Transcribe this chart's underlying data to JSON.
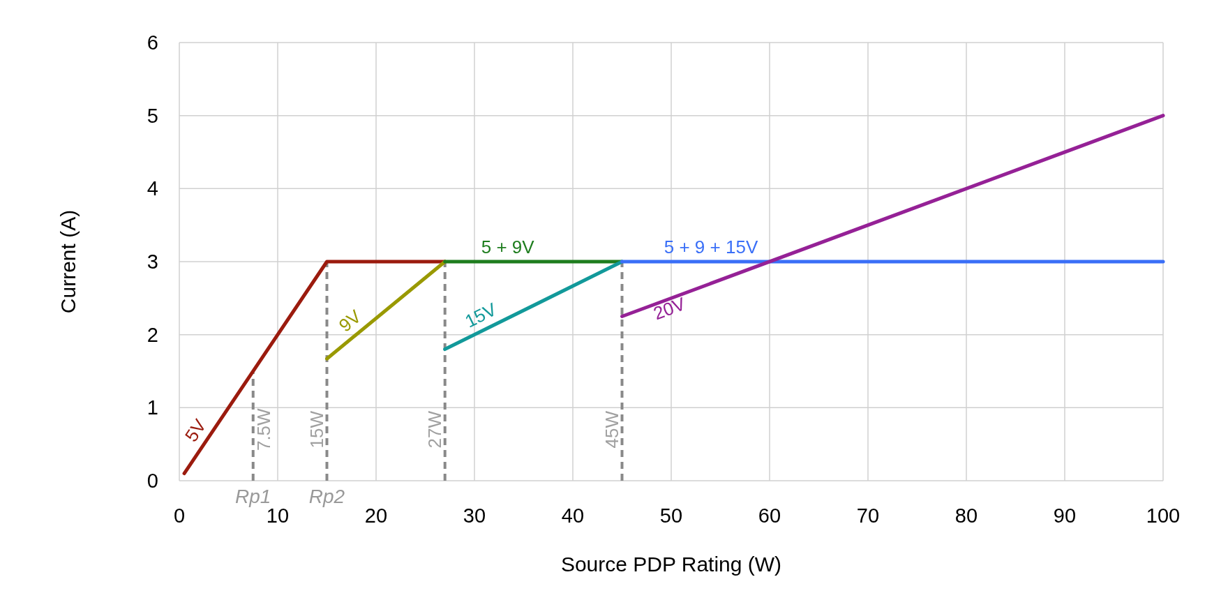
{
  "chart_data": {
    "type": "line",
    "xlabel": "Source PDP Rating (W)",
    "ylabel": "Current (A)",
    "xlim": [
      0,
      100
    ],
    "xticks": [
      0,
      10,
      20,
      30,
      40,
      50,
      60,
      70,
      80,
      90,
      100
    ],
    "ylim": [
      0,
      6
    ],
    "yticks": [
      0,
      1,
      2,
      3,
      4,
      5,
      6
    ],
    "grid": true,
    "legend": false,
    "series": [
      {
        "color": "#898989",
        "line_style": "dashed",
        "x": [
          7.5,
          7.5
        ],
        "values": [
          0,
          1.5
        ]
      },
      {
        "color": "#898989",
        "line_style": "dashed",
        "x": [
          15,
          15
        ],
        "values": [
          0,
          3
        ]
      },
      {
        "color": "#898989",
        "line_style": "dashed",
        "x": [
          27,
          27
        ],
        "values": [
          0,
          3
        ]
      },
      {
        "color": "#898989",
        "line_style": "dashed",
        "x": [
          45,
          45
        ],
        "values": [
          0,
          3
        ]
      },
      {
        "name": "5V",
        "color": "#9b1b0e",
        "line_style": "solid",
        "x": [
          0.5,
          15,
          27
        ],
        "values": [
          0.1,
          3,
          3
        ]
      },
      {
        "name": "9V",
        "color": "#999900",
        "line_style": "solid",
        "x": [
          15,
          27
        ],
        "values": [
          1.67,
          3
        ]
      },
      {
        "name": "5 + 9V",
        "color": "#1e7d1e",
        "line_style": "solid",
        "x": [
          27,
          45
        ],
        "values": [
          3,
          3
        ]
      },
      {
        "name": "15V",
        "color": "#12999a",
        "line_style": "solid",
        "x": [
          27,
          45
        ],
        "values": [
          1.8,
          3
        ]
      },
      {
        "name": "5 + 9 + 15V",
        "color": "#3a6ff7",
        "line_style": "solid",
        "x": [
          45,
          100
        ],
        "values": [
          3,
          3
        ]
      },
      {
        "name": "20V",
        "color": "#952196",
        "line_style": "solid",
        "x": [
          45,
          100
        ],
        "values": [
          2.25,
          5
        ]
      }
    ],
    "annotations": [
      {
        "text": "7.5W",
        "x": 7.5,
        "y": 0.7
      },
      {
        "text": "15W",
        "x": 15,
        "y": 0.7
      },
      {
        "text": "27W",
        "x": 27,
        "y": 0.7
      },
      {
        "text": "45W",
        "x": 45,
        "y": 0.7
      },
      {
        "text": "Rp1",
        "x": 7.5,
        "y": 0
      },
      {
        "text": "Rp2",
        "x": 15,
        "y": 0
      }
    ]
  }
}
